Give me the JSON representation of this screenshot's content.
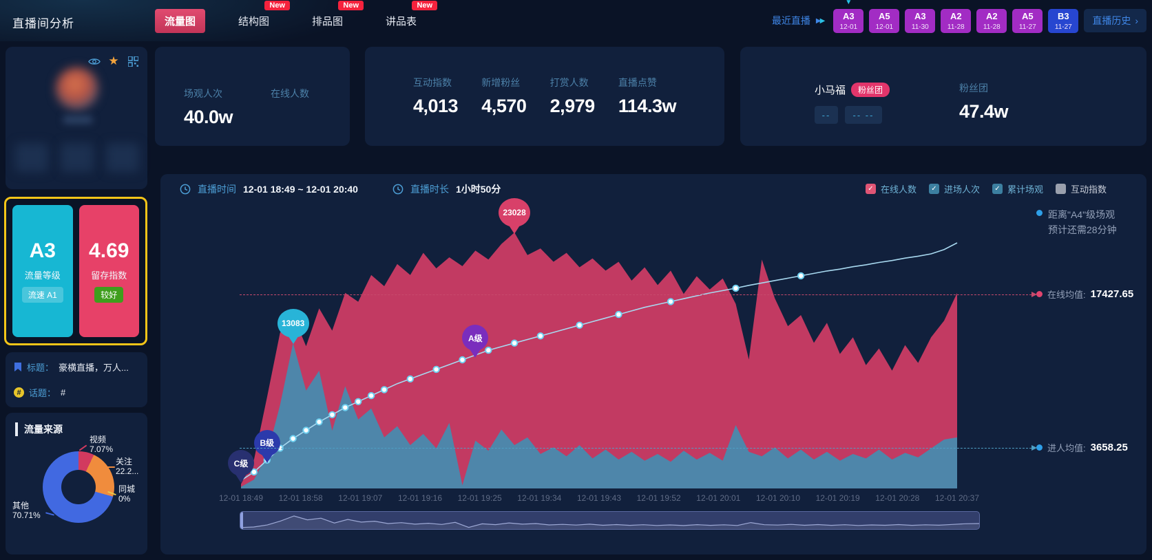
{
  "page": {
    "title": "直播间分析"
  },
  "new_badge_text": "New",
  "tabs": [
    {
      "label": "流量图",
      "new": false,
      "active": true
    },
    {
      "label": "结构图",
      "new": true,
      "active": false
    },
    {
      "label": "排品图",
      "new": true,
      "active": false
    },
    {
      "label": "讲品表",
      "new": true,
      "active": false
    }
  ],
  "recent": {
    "label": "最近直播",
    "arrows": "▶▶",
    "sessions": [
      {
        "grade": "A3",
        "date": "12-01",
        "color": "#a22cc4",
        "selected": true
      },
      {
        "grade": "A5",
        "date": "12-01",
        "color": "#a22cc4",
        "selected": false
      },
      {
        "grade": "A3",
        "date": "11-30",
        "color": "#a22cc4",
        "selected": false
      },
      {
        "grade": "A2",
        "date": "11-28",
        "color": "#a22cc4",
        "selected": false
      },
      {
        "grade": "A2",
        "date": "11-28",
        "color": "#a22cc4",
        "selected": false
      },
      {
        "grade": "A5",
        "date": "11-27",
        "color": "#a22cc4",
        "selected": false
      },
      {
        "grade": "B3",
        "date": "11-27",
        "color": "#2746d0",
        "selected": false
      }
    ],
    "history_label": "直播历史",
    "history_arrow": "›"
  },
  "stats": {
    "view_label": "场观人次",
    "view_value": "40.0w",
    "online_label": "在线人数",
    "metrics": [
      {
        "label": "互动指数",
        "value": "4,013"
      },
      {
        "label": "新增粉丝",
        "value": "4,570"
      },
      {
        "label": "打赏人数",
        "value": "2,979"
      },
      {
        "label": "直播点赞",
        "value": "114.3w"
      }
    ]
  },
  "fan_card": {
    "name": "小马福",
    "pill": "粉丝团",
    "dash1": "--",
    "dash2": "--  --",
    "club_label": "粉丝团",
    "club_value": "47.4w"
  },
  "grade_panel": {
    "level": "A3",
    "level_label": "流量等级",
    "level_badge": "流速 A1",
    "retention": "4.69",
    "retention_label": "留存指数",
    "retention_badge": "较好"
  },
  "room_info": {
    "title_label": "标题：",
    "title_value": "豪横直播，万人...",
    "topic_label": "话题：",
    "topic_value": "#"
  },
  "source_panel": {
    "title": "流量来源"
  },
  "chart_header": {
    "time_label": "直播时间",
    "time_value": "12-01 18:49 ~ 12-01 20:40",
    "duration_label": "直播时长",
    "duration_value": "1小时50分"
  },
  "legend": [
    {
      "label": "在线人数",
      "checked": true,
      "color": "#e05575"
    },
    {
      "label": "进场人次",
      "checked": true,
      "color": "#3c7fa0"
    },
    {
      "label": "累计场观",
      "checked": true,
      "color": "#3c7fa0"
    },
    {
      "label": "互动指数",
      "checked": false,
      "color": "#9aa0ad"
    }
  ],
  "annotations": {
    "distance_line1": "距离\"A4\"级场观",
    "distance_line2": "预计还需28分钟",
    "online_avg_label": "在线均值:",
    "online_avg_value": "17427.65",
    "enter_avg_label": "进人均值:",
    "enter_avg_value": "3658.25"
  },
  "chart_data": [
    {
      "type": "area",
      "x_ticks": [
        "12-01 18:49",
        "12-01 18:58",
        "12-01 19:07",
        "12-01 19:16",
        "12-01 19:25",
        "12-01 19:34",
        "12-01 19:43",
        "12-01 19:52",
        "12-01 20:01",
        "12-01 20:10",
        "12-01 20:19",
        "12-01 20:28",
        "12-01 20:37"
      ],
      "y_max": 23028,
      "series": [
        {
          "name": "在线人数",
          "type": "area",
          "color": "#c23a62",
          "values": [
            400,
            2600,
            8200,
            14000,
            15600,
            12800,
            16200,
            14200,
            17600,
            16800,
            19200,
            18200,
            20200,
            19200,
            21200,
            19800,
            20800,
            20000,
            21400,
            20600,
            22000,
            23028,
            21000,
            21600,
            20400,
            21200,
            19900,
            20700,
            19600,
            20400,
            18700,
            19900,
            18300,
            19600,
            17500,
            19100,
            17900,
            18900,
            16600,
            11600,
            20600,
            17100,
            14600,
            15600,
            13100,
            14900,
            12100,
            13600,
            11100,
            12600,
            10600,
            12900,
            11300,
            13600,
            15100,
            17600
          ]
        },
        {
          "name": "进场人次",
          "type": "area",
          "color": "#4e86aa",
          "values": [
            150,
            800,
            3000,
            7500,
            13083,
            8800,
            10600,
            5200,
            9200,
            6200,
            7200,
            4600,
            5600,
            3900,
            4900,
            3600,
            5900,
            300,
            4300,
            3400,
            5300,
            3900,
            4600,
            3100,
            3700,
            2900,
            3900,
            2700,
            3500,
            2600,
            3300,
            2500,
            3100,
            2400,
            3400,
            2600,
            3200,
            2500,
            5700,
            3300,
            2900,
            3700,
            2700,
            3500,
            2600,
            3300,
            2500,
            3100,
            2700,
            3500,
            2600,
            3200,
            2800,
            3600,
            4400,
            4600
          ]
        },
        {
          "name": "累计场观",
          "type": "line",
          "color": "#a8d9f0",
          "scale": "normalized_0_1",
          "values": [
            0.005,
            0.04,
            0.09,
            0.14,
            0.18,
            0.215,
            0.25,
            0.28,
            0.31,
            0.335,
            0.36,
            0.385,
            0.41,
            0.43,
            0.45,
            0.47,
            0.49,
            0.51,
            0.53,
            0.55,
            0.565,
            0.58,
            0.595,
            0.61,
            0.625,
            0.64,
            0.655,
            0.67,
            0.685,
            0.7,
            0.715,
            0.73,
            0.742,
            0.754,
            0.766,
            0.778,
            0.79,
            0.8,
            0.81,
            0.822,
            0.832,
            0.842,
            0.852,
            0.862,
            0.872,
            0.882,
            0.89,
            0.9,
            0.908,
            0.918,
            0.926,
            0.936,
            0.944,
            0.954,
            0.972,
            1.0
          ],
          "marker_indices": [
            1,
            2,
            3,
            4,
            5,
            6,
            7,
            8,
            9,
            10,
            11,
            13,
            15,
            17,
            19,
            21,
            23,
            26,
            29,
            33,
            38,
            43
          ]
        }
      ],
      "point_labels": [
        {
          "series": "在线人数",
          "index": 21,
          "label": "23028",
          "color": "#d84069"
        },
        {
          "series": "进场人次",
          "index": 4,
          "label": "13083",
          "color": "#28b4d8"
        }
      ],
      "grade_markers": [
        {
          "label": "C级",
          "index": 0,
          "color": "#283070"
        },
        {
          "label": "B级",
          "index": 2,
          "color": "#2b3aab"
        },
        {
          "label": "A级",
          "index": 18,
          "color": "#7a2dbd"
        }
      ],
      "averages": {
        "online": 17427.65,
        "entering": 3658.25
      }
    },
    {
      "type": "pie",
      "title": "流量来源",
      "slices": [
        {
          "label": "视频",
          "pct": 7.07,
          "display": "7.07%",
          "color": "#d23a5f"
        },
        {
          "label": "关注",
          "pct": 22.22,
          "display": "22.2...",
          "color": "#f08c3d"
        },
        {
          "label": "同城",
          "pct": 0,
          "display": "0%",
          "color": "#e8c84a"
        },
        {
          "label": "其他",
          "pct": 70.71,
          "display": "70.71%",
          "color": "#4169e1"
        }
      ]
    }
  ]
}
